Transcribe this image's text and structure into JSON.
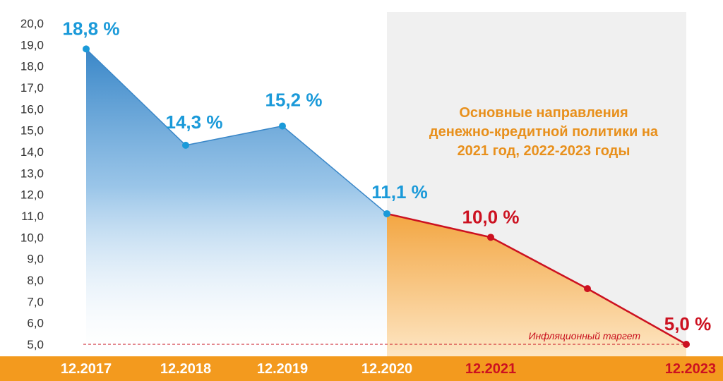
{
  "chart_data": {
    "type": "area",
    "ylim": [
      5.0,
      20.0
    ],
    "y_ticks": [
      "5,0",
      "6,0",
      "7,0",
      "8,0",
      "9,0",
      "10,0",
      "11,0",
      "12,0",
      "13,0",
      "14,0",
      "15,0",
      "16,0",
      "17,0",
      "18,0",
      "19,0",
      "20,0"
    ],
    "x_categories": [
      "12.2017",
      "12.2018",
      "12.2019",
      "12.2020",
      "12.2021",
      "",
      "12.2023"
    ],
    "series": [
      {
        "kind": "actual",
        "x": [
          "12.2017",
          "12.2018",
          "12.2019",
          "12.2020"
        ],
        "values": [
          18.8,
          14.3,
          15.2,
          11.1
        ],
        "labels": [
          "18,8 %",
          "14,3 %",
          "15,2 %",
          "11,1 %"
        ],
        "color": "#2f8fd3"
      },
      {
        "kind": "forecast",
        "x": [
          "12.2020",
          "12.2021",
          "",
          "12.2023"
        ],
        "values": [
          11.1,
          10.0,
          7.6,
          5.0
        ],
        "labels": [
          "",
          "10,0 %",
          "",
          "5,0 %"
        ],
        "color": "#cc1120"
      }
    ],
    "forecast_note": [
      "Основные направления",
      "денежно-кредитной политики на",
      "2021 год, 2022-2023 годы"
    ],
    "target": {
      "value": 5.0,
      "label": "Инфляционный таргет"
    },
    "colors": {
      "actual_area": "#3a87c8",
      "actual_point": "#1b9ad9",
      "forecast_area": "#f3a642",
      "forecast_line": "#cc1120",
      "forecast_panel": "#f0f0f0",
      "bottom_bar": "#f39a1e",
      "note": "#e8901c",
      "actual_axis_label": "#ffffff",
      "forecast_axis_label": "#cc1120"
    }
  }
}
